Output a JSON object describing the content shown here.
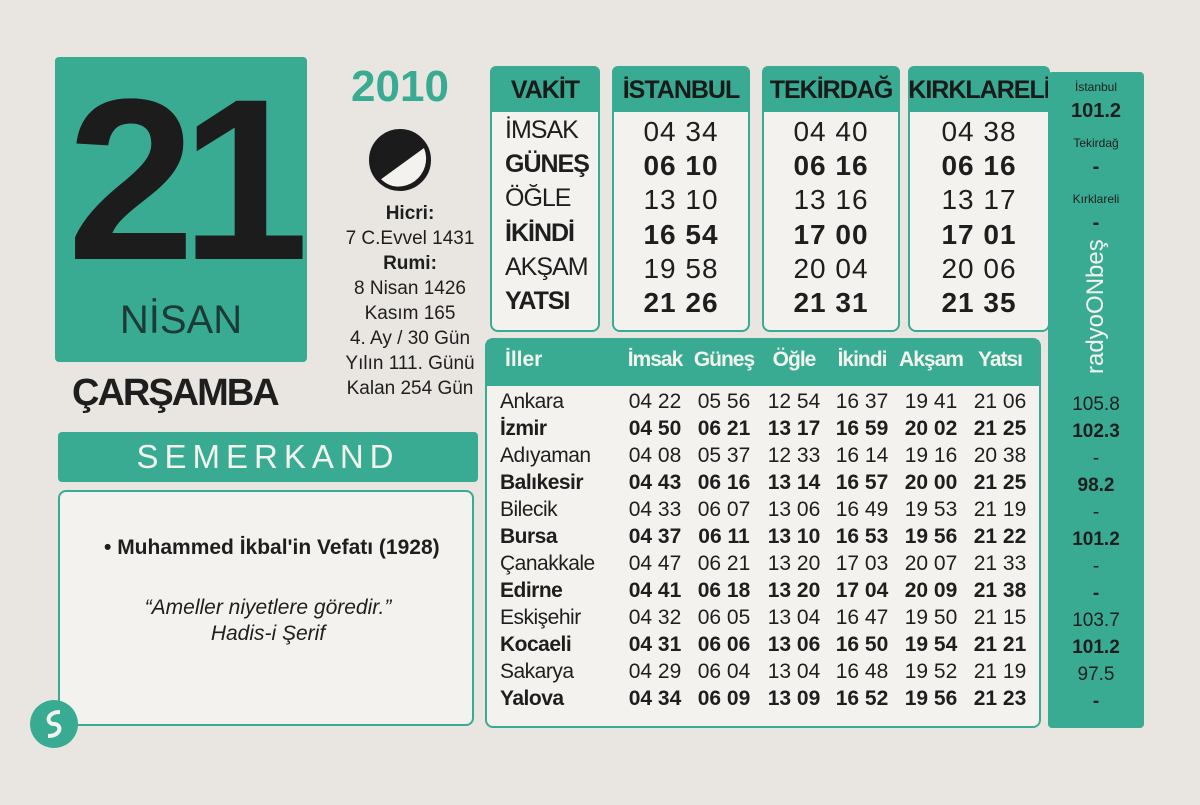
{
  "date": {
    "day": "21",
    "month": "NİSAN",
    "year": "2010",
    "weekday": "ÇARŞAMBA"
  },
  "info": [
    "Hicri:",
    "7 C.Evvel 1431",
    "Rumi:",
    "8 Nisan 1426",
    "Kasım 165",
    "4. Ay / 30 Gün",
    "Yılın 111. Günü",
    "Kalan 254 Gün"
  ],
  "brand": "SEMERKAND",
  "note": {
    "event": "Muhammed İkbal'in Vefatı (1928)",
    "quote": "“Ameller niyetlere göredir.”",
    "source": "Hadis-i Şerif"
  },
  "prayer_table": {
    "header": [
      "VAKİT",
      "İSTANBUL",
      "TEKİRDAĞ",
      "KIRKLARELİ"
    ],
    "rows": [
      [
        "İMSAK",
        "04 34",
        "04 40",
        "04 38"
      ],
      [
        "GÜNEŞ",
        "06 10",
        "06 16",
        "06 16"
      ],
      [
        "ÖĞLE",
        "13 10",
        "13 16",
        "13 17"
      ],
      [
        "İKİNDİ",
        "16 54",
        "17 00",
        "17 01"
      ],
      [
        "AKŞAM",
        "19 58",
        "20 04",
        "20 06"
      ],
      [
        "YATSI",
        "21 26",
        "21 31",
        "21 35"
      ]
    ]
  },
  "cities_table": {
    "header": [
      "İller",
      "İmsak",
      "Güneş",
      "Öğle",
      "İkindi",
      "Akşam",
      "Yatsı"
    ],
    "rows": [
      [
        "Ankara",
        "04 22",
        "05 56",
        "12 54",
        "16 37",
        "19 41",
        "21 06"
      ],
      [
        "İzmir",
        "04 50",
        "06 21",
        "13 17",
        "16 59",
        "20 02",
        "21 25"
      ],
      [
        "Adıyaman",
        "04 08",
        "05 37",
        "12 33",
        "16 14",
        "19 16",
        "20 38"
      ],
      [
        "Balıkesir",
        "04 43",
        "06 16",
        "13 14",
        "16 57",
        "20 00",
        "21 25"
      ],
      [
        "Bilecik",
        "04 33",
        "06 07",
        "13 06",
        "16 49",
        "19 53",
        "21 19"
      ],
      [
        "Bursa",
        "04 37",
        "06 11",
        "13 10",
        "16 53",
        "19 56",
        "21 22"
      ],
      [
        "Çanakkale",
        "04 47",
        "06 21",
        "13 20",
        "17 03",
        "20 07",
        "21 33"
      ],
      [
        "Edirne",
        "04 41",
        "06 18",
        "13 20",
        "17 04",
        "20 09",
        "21 38"
      ],
      [
        "Eskişehir",
        "04 32",
        "06 05",
        "13 04",
        "16 47",
        "19 50",
        "21 15"
      ],
      [
        "Kocaeli",
        "04 31",
        "06 06",
        "13 06",
        "16 50",
        "19 54",
        "21 21"
      ],
      [
        "Sakarya",
        "04 29",
        "06 04",
        "13 04",
        "16 48",
        "19 52",
        "21 19"
      ],
      [
        "Yalova",
        "04 34",
        "06 09",
        "13 09",
        "16 52",
        "19 56",
        "21 23"
      ]
    ]
  },
  "radio": {
    "stations": [
      {
        "city": "İstanbul",
        "frequency": "101.2"
      },
      {
        "city": "Tekirdağ",
        "frequency": "-"
      },
      {
        "city": "Kırklareli",
        "frequency": "-"
      }
    ],
    "logo": "radyoONbeş",
    "city_frequencies": [
      "105.8",
      "102.3",
      "-",
      "98.2",
      "-",
      "101.2",
      "-",
      "-",
      "103.7",
      "101.2",
      "97.5",
      "-"
    ]
  }
}
